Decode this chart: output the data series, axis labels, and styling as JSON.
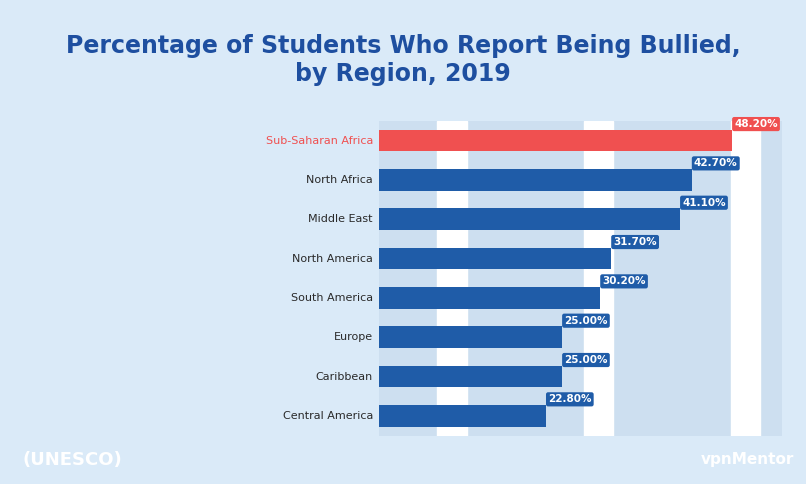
{
  "title": "Percentage of Students Who Report Being Bullied,\nby Region, 2019",
  "title_color": "#1e4fa0",
  "title_fontsize": 17,
  "categories": [
    "Sub-Saharan Africa",
    "North Africa",
    "Middle East",
    "North America",
    "South America",
    "Europe",
    "Caribbean",
    "Central America"
  ],
  "values": [
    48.2,
    42.7,
    41.1,
    31.7,
    30.2,
    25.0,
    25.0,
    22.8
  ],
  "bar_colors": [
    "#f05050",
    "#1f5ca8",
    "#1f5ca8",
    "#1f5ca8",
    "#1f5ca8",
    "#1f5ca8",
    "#1f5ca8",
    "#1f5ca8"
  ],
  "label_colors": [
    "#f05050",
    "#1f5ca8",
    "#1f5ca8",
    "#1f5ca8",
    "#1f5ca8",
    "#1f5ca8",
    "#1f5ca8",
    "#1f5ca8"
  ],
  "label_color_inside": "#ffffff",
  "title_bg": "#daeaf8",
  "chart_bg": "#ffffff",
  "col_band_color": "#cddff0",
  "outer_border_color": "#2196f3",
  "footer_bg_left": "#2196f3",
  "footer_bg_right": "#1a5ca8",
  "footer_text": "(UNESCO)",
  "footer_text_color": "#ffffff",
  "xlim": [
    0,
    55
  ],
  "bar_height": 0.55,
  "value_labels": [
    "48.20%",
    "42.70%",
    "41.10%",
    "31.70%",
    "30.20%",
    "25.00%",
    "25.00%",
    "22.80%"
  ],
  "col_bands_x": [
    0,
    10,
    20,
    30,
    40,
    50
  ],
  "figsize": [
    8.06,
    4.84
  ],
  "dpi": 100
}
